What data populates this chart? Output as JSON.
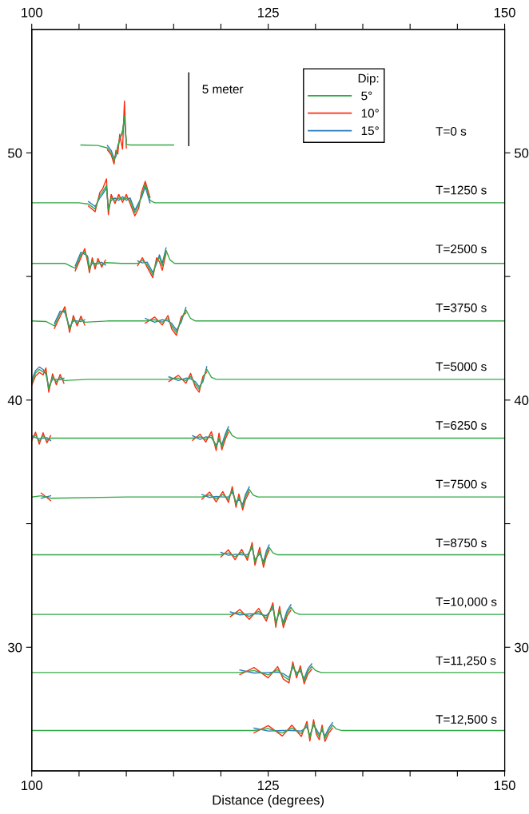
{
  "chart_data": {
    "type": "line",
    "xlabel": "Distance (degrees)",
    "xlim": [
      100,
      150
    ],
    "ylim": [
      25,
      55
    ],
    "x2lim": [
      100,
      150
    ],
    "y2lim": [
      25,
      55
    ],
    "xticks": [
      100,
      {
        "value": 105,
        "label": null
      },
      {
        "value": 110,
        "label": null
      },
      {
        "value": 115,
        "label": null
      },
      {
        "value": 120,
        "label": null
      },
      125,
      {
        "value": 130,
        "label": null
      },
      {
        "value": 135,
        "label": null
      },
      {
        "value": 140,
        "label": null
      },
      {
        "value": 145,
        "label": null
      },
      150
    ],
    "x2ticks": [
      100,
      {
        "value": 105,
        "label": null
      },
      {
        "value": 110,
        "label": null
      },
      {
        "value": 115,
        "label": null
      },
      {
        "value": 120,
        "label": null
      },
      125,
      {
        "value": 130,
        "label": null
      },
      {
        "value": 135,
        "label": null
      },
      {
        "value": 140,
        "label": null
      },
      {
        "value": 145,
        "label": null
      },
      150
    ],
    "yticks": [
      30,
      {
        "value": 35,
        "label": null
      },
      40,
      {
        "value": 45,
        "label": null
      },
      50
    ],
    "y2ticks": [
      30,
      {
        "value": 35,
        "label": null
      },
      40,
      {
        "value": 45,
        "label": null
      },
      50
    ],
    "grid": false,
    "legend": "top",
    "legend_title": "Dip:",
    "line_style": "solid",
    "marker": "none",
    "annotations": [
      "5 meter",
      "T=0 s",
      "T=1250 s",
      "T=2500 s",
      "T=3750 s",
      "T=5000 s",
      "T=6250 s",
      "T=7500 s",
      "T=8750 s",
      "T=10,000 s",
      "T=11,250 s",
      "T=12,500 s"
    ],
    "series": [
      {
        "name": "5°",
        "color": "#33a846",
        "x": [
          105.2,
          107,
          108,
          108.4,
          108.7,
          108.9,
          109.1,
          109.3,
          109.6,
          109.8,
          110.0,
          110.4,
          112,
          115.0
        ],
        "values": [
          50.32,
          50.3,
          50.2,
          50.0,
          49.68,
          49.95,
          50.2,
          50.6,
          50.8,
          51.5,
          50.35,
          50.32,
          50.32,
          50.32
        ]
      },
      {
        "color": "#33a846",
        "x": [
          100,
          105,
          106,
          106.7,
          107.2,
          107.5,
          107.9,
          108.1,
          108.4,
          108.8,
          109.2,
          109.6,
          110.0,
          110.4,
          110.9,
          111.3,
          111.6,
          112.0,
          112.5,
          113,
          150
        ],
        "values": [
          47.98,
          47.98,
          47.93,
          47.73,
          48.28,
          48.43,
          48.68,
          47.68,
          48.18,
          48.08,
          48.18,
          48.13,
          48.18,
          48.08,
          47.58,
          47.88,
          48.28,
          48.73,
          48.08,
          47.98,
          47.98
        ]
      },
      {
        "color": "#33a846",
        "x": [
          100,
          103.5,
          104.6,
          105.2,
          105.6,
          105.9,
          106.1,
          106.4,
          106.7,
          107.0,
          107.4,
          107.8,
          109.5,
          111.2,
          111.7,
          112.2,
          112.8,
          113.2,
          113.5,
          113.8,
          114.2,
          114.6,
          115.1,
          150
        ],
        "values": [
          45.53,
          45.53,
          45.33,
          45.88,
          46.0,
          45.73,
          45.26,
          45.63,
          45.43,
          45.61,
          45.48,
          45.56,
          45.53,
          45.53,
          45.65,
          45.48,
          45.06,
          45.63,
          45.78,
          45.43,
          46.06,
          45.68,
          45.53,
          45.53
        ]
      },
      {
        "color": "#33a846",
        "x": [
          100,
          101.5,
          102.4,
          103.0,
          103.5,
          104.0,
          104.4,
          104.8,
          105.2,
          105.6,
          108,
          112,
          113,
          113.8,
          114.4,
          114.8,
          115.3,
          115.8,
          116.3,
          116.8,
          117.3,
          150
        ],
        "values": [
          43.2,
          43.18,
          43.0,
          43.5,
          43.65,
          42.85,
          43.3,
          43.1,
          43.28,
          43.15,
          43.2,
          43.2,
          43.25,
          43.15,
          43.3,
          43.0,
          42.73,
          43.25,
          43.65,
          43.3,
          43.2,
          43.2
        ]
      },
      {
        "color": "#33a846",
        "x": [
          100,
          100.4,
          100.8,
          101.2,
          101.5,
          101.8,
          102.2,
          102.6,
          103.0,
          103.4,
          106,
          114.5,
          115.5,
          116.3,
          116.8,
          117.3,
          117.7,
          118.1,
          118.5,
          119.0,
          119.5,
          150
        ],
        "values": [
          40.71,
          41.09,
          41.24,
          41.14,
          41.14,
          40.44,
          40.94,
          40.74,
          40.92,
          40.79,
          40.84,
          40.84,
          40.89,
          40.79,
          40.96,
          40.64,
          40.44,
          40.84,
          41.25,
          40.92,
          40.84,
          40.84
        ]
      },
      {
        "color": "#33a846",
        "x": [
          100,
          100.4,
          100.8,
          101.2,
          101.6,
          102,
          110,
          117,
          117.8,
          118.4,
          119.0,
          119.5,
          119.8,
          120.1,
          120.5,
          120.8,
          121.2,
          121.7,
          150
        ],
        "values": [
          38.46,
          38.58,
          38.34,
          38.56,
          38.38,
          38.46,
          38.46,
          38.46,
          38.51,
          38.41,
          38.58,
          38.08,
          38.46,
          38.11,
          38.56,
          38.82,
          38.56,
          38.46,
          38.46
        ]
      },
      {
        "color": "#33a846",
        "x": [
          100,
          101,
          102,
          110,
          118,
          118.8,
          119.5,
          120.2,
          120.8,
          121.2,
          121.6,
          121.9,
          122.3,
          122.6,
          123.0,
          123.4,
          123.9,
          150
        ],
        "values": [
          36.08,
          36.13,
          36.03,
          36.08,
          36.08,
          36.16,
          36.0,
          36.18,
          35.98,
          36.38,
          35.78,
          36.08,
          35.68,
          36.08,
          36.39,
          36.16,
          36.08,
          36.08
        ]
      },
      {
        "color": "#33a846",
        "x": [
          100,
          110,
          120,
          120.8,
          121.5,
          122.2,
          122.8,
          123.3,
          123.6,
          124.1,
          124.5,
          124.8,
          125.1,
          125.5,
          126.0,
          150
        ],
        "values": [
          33.74,
          33.74,
          33.74,
          33.82,
          33.66,
          33.84,
          33.64,
          34.12,
          33.44,
          33.89,
          33.36,
          33.79,
          34.04,
          33.82,
          33.74,
          33.74
        ]
      },
      {
        "color": "#33a846",
        "x": [
          100,
          110,
          121,
          122,
          123,
          124,
          124.8,
          125.5,
          125.8,
          126.2,
          126.6,
          127.0,
          127.4,
          127.8,
          128.3,
          150
        ],
        "values": [
          31.33,
          31.33,
          31.33,
          31.41,
          31.25,
          31.45,
          31.18,
          31.68,
          30.93,
          31.53,
          30.91,
          31.38,
          31.62,
          31.41,
          31.33,
          31.33
        ]
      },
      {
        "color": "#33a846",
        "x": [
          100,
          110,
          122,
          123.5,
          125,
          126,
          126.6,
          127.2,
          127.6,
          128.0,
          128.4,
          128.8,
          129.2,
          129.6,
          130.0,
          130.6,
          150
        ],
        "values": [
          28.98,
          28.98,
          28.98,
          29.06,
          28.88,
          29.1,
          28.83,
          28.68,
          29.29,
          28.88,
          29.13,
          28.63,
          29.03,
          29.23,
          29.06,
          28.98,
          28.98
        ]
      },
      {
        "color": "#33a846",
        "x": [
          100,
          110,
          123.5,
          125,
          126.5,
          127.5,
          128.5,
          129.1,
          129.4,
          129.8,
          130.1,
          130.4,
          130.7,
          131.0,
          131.4,
          131.8,
          132.2,
          132.8,
          150
        ],
        "values": [
          26.63,
          26.63,
          26.63,
          26.71,
          26.53,
          26.73,
          26.51,
          26.88,
          26.33,
          26.95,
          26.58,
          26.38,
          26.73,
          26.31,
          26.63,
          26.85,
          26.69,
          26.63,
          26.63
        ]
      },
      {
        "name": "10°",
        "color": "#ff2a10",
        "x": [
          108,
          108.4,
          108.7,
          108.9,
          109.1,
          109.3,
          109.6,
          109.8,
          110.0
        ],
        "values": [
          50.12,
          49.92,
          49.55,
          50.1,
          49.95,
          50.75,
          50.15,
          52.1,
          50.2
        ]
      },
      {
        "color": "#ff2a10",
        "x": [
          106,
          106.7,
          107.2,
          107.5,
          107.9,
          108.1,
          108.4,
          108.8,
          109.2,
          109.6,
          110.0,
          110.4,
          110.9,
          111.3,
          111.6,
          112.0,
          112.5
        ],
        "values": [
          47.85,
          47.62,
          48.4,
          48.55,
          48.95,
          47.5,
          48.32,
          47.95,
          48.32,
          48.0,
          48.32,
          47.95,
          47.45,
          47.75,
          48.4,
          48.85,
          48.2
        ]
      },
      {
        "color": "#ff2a10",
        "x": [
          104.6,
          105.2,
          105.6,
          105.9,
          106.1,
          106.4,
          106.7,
          107.0,
          107.4,
          107.8,
          109.5,
          111.2,
          111.7,
          112.2,
          112.8,
          113.2,
          113.5,
          113.8,
          114.2
        ],
        "values": [
          45.23,
          45.76,
          46.13,
          45.6,
          45.15,
          45.76,
          45.3,
          45.73,
          45.38,
          45.66,
          null,
          45.44,
          45.76,
          45.38,
          44.95,
          45.76,
          45.6,
          45.25,
          45.94
        ]
      },
      {
        "color": "#ff2a10",
        "x": [
          102.4,
          103.0,
          103.5,
          104.0,
          104.4,
          104.8,
          105.2,
          105.6,
          108,
          112,
          113,
          113.8,
          114.4,
          114.8,
          115.3,
          115.8,
          116.3
        ],
        "values": [
          42.9,
          43.38,
          43.78,
          42.74,
          43.42,
          43.0,
          43.4,
          43.04,
          null,
          43.11,
          43.36,
          43.04,
          43.42,
          42.88,
          42.62,
          43.36,
          43.53
        ]
      },
      {
        "color": "#ff2a10",
        "x": [
          100,
          100.4,
          100.8,
          101.2,
          101.5,
          101.8,
          102.2,
          102.6,
          103.0,
          103.4,
          106,
          114.5,
          115.5,
          116.3,
          116.8,
          117.3,
          117.7,
          118.1,
          118.5
        ],
        "values": [
          40.6,
          40.97,
          41.12,
          41.02,
          41.3,
          40.32,
          41.06,
          40.62,
          41.04,
          40.68,
          null,
          40.75,
          41.0,
          40.68,
          41.08,
          40.52,
          40.32,
          40.96,
          41.13
        ]
      },
      {
        "color": "#ff2a10",
        "x": [
          100,
          100.4,
          100.8,
          101.2,
          101.6,
          102,
          110,
          117,
          117.8,
          118.4,
          119.0,
          119.5,
          119.8,
          120.1,
          120.5,
          120.8
        ],
        "values": [
          38.36,
          38.7,
          38.22,
          38.68,
          38.27,
          38.56,
          null,
          38.37,
          38.62,
          38.3,
          38.72,
          37.96,
          38.66,
          37.99,
          38.45,
          38.7
        ]
      },
      {
        "color": "#ff2a10",
        "x": [
          101,
          102,
          110,
          118,
          118.8,
          119.5,
          120.2,
          120.8,
          121.2,
          121.6,
          121.9,
          122.3,
          122.6,
          123.0
        ],
        "values": [
          36.24,
          35.93,
          null,
          35.99,
          36.28,
          35.88,
          36.3,
          35.86,
          36.5,
          35.66,
          36.2,
          35.56,
          35.97,
          36.27
        ]
      },
      {
        "color": "#ff2a10",
        "x": [
          120,
          120.8,
          121.5,
          122.2,
          122.8,
          123.3,
          123.6,
          124.1,
          124.5,
          124.8,
          125.1
        ],
        "values": [
          33.65,
          33.94,
          33.54,
          33.96,
          33.52,
          34.24,
          33.32,
          34.04,
          33.24,
          33.68,
          33.92
        ]
      },
      {
        "color": "#ff2a10",
        "x": [
          121,
          122,
          123,
          124,
          124.8,
          125.5,
          125.8,
          126.2,
          126.6,
          127.0,
          127.4
        ],
        "values": [
          31.24,
          31.53,
          31.13,
          31.57,
          31.06,
          31.8,
          30.81,
          31.65,
          30.8,
          31.27,
          31.5
        ]
      },
      {
        "color": "#ff2a10",
        "x": [
          122,
          123.5,
          125,
          126,
          126.6,
          127.2,
          127.6,
          128.0,
          128.4,
          128.8,
          129.2,
          129.6
        ],
        "values": [
          28.89,
          29.18,
          28.76,
          29.22,
          28.71,
          28.56,
          29.41,
          28.76,
          29.25,
          28.52,
          28.92,
          29.11
        ]
      },
      {
        "color": "#ff2a10",
        "x": [
          123.5,
          125,
          126.5,
          127.5,
          128.5,
          129.1,
          129.4,
          129.8,
          130.1,
          130.4,
          130.7,
          131.0,
          131.4,
          131.8
        ],
        "values": [
          26.54,
          26.83,
          26.41,
          26.85,
          26.39,
          27.0,
          26.21,
          27.07,
          26.47,
          26.26,
          26.85,
          26.19,
          26.52,
          26.73
        ]
      },
      {
        "name": "15°",
        "color": "#2b7bbd",
        "x": [
          108,
          108.4,
          108.7,
          108.9,
          109.1,
          109.3,
          109.6,
          109.8,
          110.0
        ],
        "values": [
          50.3,
          50.1,
          49.78,
          49.85,
          50.3,
          50.5,
          50.9,
          51.4,
          50.45
        ]
      },
      {
        "color": "#2b7bbd",
        "x": [
          106,
          106.7,
          107.2,
          107.5,
          107.9,
          108.1,
          108.4,
          108.8,
          109.2,
          109.6,
          110.0,
          110.4,
          110.9,
          111.3,
          111.6,
          112.0,
          112.5
        ],
        "values": [
          48.03,
          47.83,
          48.18,
          48.33,
          48.58,
          47.78,
          48.08,
          48.18,
          48.08,
          48.23,
          48.08,
          48.18,
          47.68,
          47.98,
          48.18,
          48.63,
          47.98
        ]
      },
      {
        "color": "#2b7bbd",
        "x": [
          104.6,
          105.2,
          105.6,
          105.9,
          106.1,
          106.4,
          106.7,
          107.0,
          107.4,
          107.8,
          109.5,
          111.2,
          111.7,
          112.2,
          112.8,
          113.2,
          113.5,
          113.8,
          114.2
        ],
        "values": [
          45.43,
          45.98,
          45.9,
          45.83,
          45.36,
          45.53,
          45.53,
          45.51,
          45.58,
          45.46,
          null,
          45.63,
          45.55,
          45.58,
          45.16,
          45.53,
          45.88,
          45.53,
          46.16
        ]
      },
      {
        "color": "#2b7bbd",
        "x": [
          102.4,
          103.0,
          103.5,
          104.0,
          104.4,
          104.8,
          105.2,
          105.6,
          108,
          112,
          113,
          113.8,
          114.4,
          114.8,
          115.3,
          115.8,
          116.3
        ],
        "values": [
          43.1,
          43.6,
          43.55,
          42.95,
          43.2,
          43.2,
          43.18,
          43.25,
          null,
          43.3,
          43.15,
          43.25,
          43.2,
          43.1,
          42.83,
          43.15,
          43.75
        ]
      },
      {
        "color": "#2b7bbd",
        "x": [
          100,
          100.4,
          100.8,
          101.2,
          101.5,
          101.8,
          102.2,
          102.6,
          103.0,
          103.4,
          106,
          114.5,
          115.5,
          116.3,
          116.8,
          117.3,
          117.7,
          118.1,
          118.5
        ],
        "values": [
          40.81,
          41.19,
          41.34,
          41.24,
          41.04,
          40.54,
          40.84,
          40.84,
          40.82,
          40.89,
          null,
          40.94,
          40.79,
          40.89,
          40.86,
          40.74,
          40.54,
          40.74,
          41.35
        ]
      },
      {
        "color": "#2b7bbd",
        "x": [
          100,
          100.4,
          100.8,
          101.2,
          101.6,
          102,
          110,
          117,
          117.8,
          118.4,
          119.0,
          119.5,
          119.8,
          120.1,
          120.5,
          120.8
        ],
        "values": [
          38.56,
          38.48,
          38.44,
          38.46,
          38.48,
          38.36,
          null,
          38.56,
          38.41,
          38.51,
          38.48,
          38.18,
          38.36,
          38.21,
          38.66,
          38.92
        ]
      },
      {
        "color": "#2b7bbd",
        "x": [
          101,
          102,
          110,
          118,
          118.8,
          119.5,
          120.2,
          120.8,
          121.2,
          121.6,
          121.9,
          122.3,
          122.6,
          123.0
        ],
        "values": [
          36.03,
          36.13,
          null,
          36.18,
          36.06,
          36.1,
          36.08,
          36.08,
          36.28,
          35.88,
          35.98,
          35.78,
          36.18,
          36.49
        ]
      },
      {
        "color": "#2b7bbd",
        "x": [
          120,
          120.8,
          121.5,
          122.2,
          122.8,
          123.3,
          123.6,
          124.1,
          124.5,
          124.8,
          125.1
        ],
        "values": [
          33.84,
          33.72,
          33.76,
          33.74,
          33.74,
          34.02,
          33.54,
          33.79,
          33.46,
          33.89,
          34.14
        ]
      },
      {
        "color": "#2b7bbd",
        "x": [
          121,
          122,
          123,
          124,
          124.8,
          125.5,
          125.8,
          126.2,
          126.6,
          127.0,
          127.4
        ],
        "values": [
          31.43,
          31.31,
          31.35,
          31.35,
          31.28,
          31.58,
          31.03,
          31.43,
          31.01,
          31.48,
          31.72
        ]
      },
      {
        "color": "#2b7bbd",
        "x": [
          122,
          123.5,
          125,
          126,
          126.6,
          127.2,
          127.6,
          128.0,
          128.4,
          128.8,
          129.2,
          129.6
        ],
        "values": [
          29.08,
          28.96,
          28.98,
          29.0,
          28.93,
          28.78,
          29.19,
          28.98,
          29.03,
          28.73,
          29.13,
          29.33
        ]
      },
      {
        "color": "#2b7bbd",
        "x": [
          123.5,
          125,
          126.5,
          127.5,
          128.5,
          129.1,
          129.4,
          129.8,
          130.1,
          130.4,
          130.7,
          131.0,
          131.4,
          131.8
        ],
        "values": [
          26.73,
          26.61,
          26.63,
          26.63,
          26.61,
          26.78,
          26.43,
          26.85,
          26.68,
          26.48,
          26.63,
          26.41,
          26.73,
          26.95
        ]
      },
      {
        "color": "#000000",
        "x": [
          116.6,
          116.6
        ],
        "values": [
          50.29,
          53.24
        ]
      }
    ]
  }
}
